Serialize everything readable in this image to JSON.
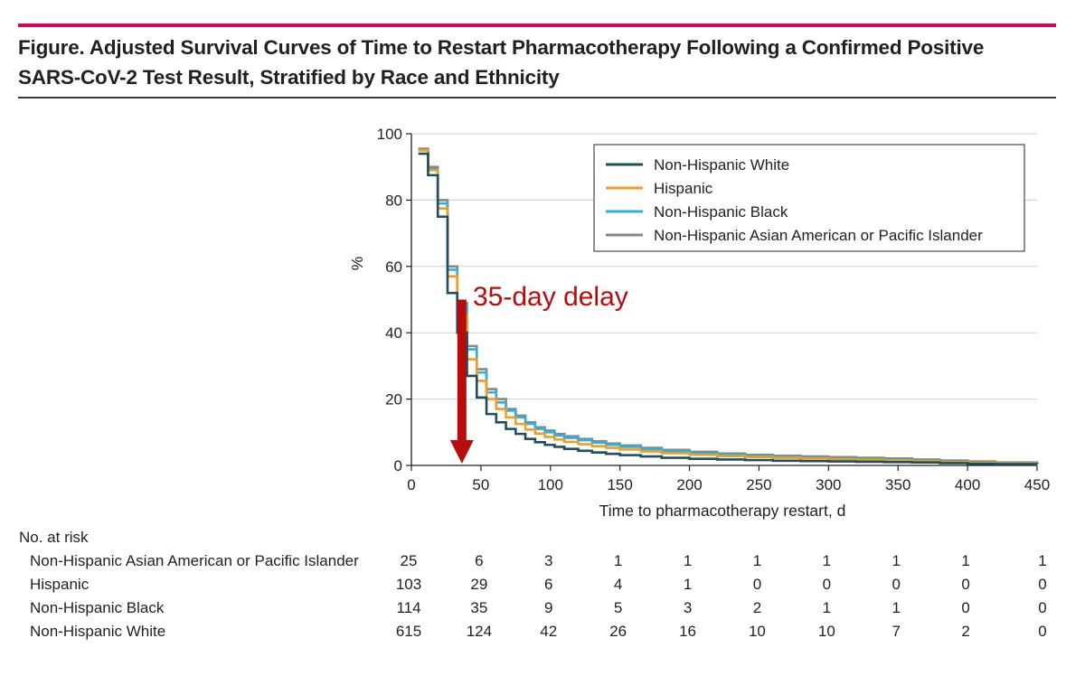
{
  "figure": {
    "title_line1": "Figure. Adjusted Survival Curves of Time to Restart Pharmacotherapy Following a Confirmed Positive",
    "title_line2": "SARS-CoV-2 Test Result, Stratified by Race and Ethnicity"
  },
  "colors": {
    "accent_rule": "#d6045a",
    "white": "#1f4e5f",
    "hispanic": "#f39c1f",
    "black": "#29b2e2",
    "asian": "#8b8680",
    "annotation": "#b80b0b"
  },
  "chart_data": {
    "type": "line",
    "xlabel": "Time to pharmacotherapy restart, d",
    "ylabel": "%",
    "xlim": [
      0,
      450
    ],
    "ylim": [
      0,
      100
    ],
    "x_ticks": [
      0,
      50,
      100,
      150,
      200,
      250,
      300,
      350,
      400,
      450
    ],
    "y_ticks": [
      0,
      20,
      40,
      60,
      80,
      100
    ],
    "legend_position": "top-right",
    "legend": [
      "Non-Hispanic White",
      "Hispanic",
      "Non-Hispanic Black",
      "Non-Hispanic Asian American or Pacific Islander"
    ],
    "annotation": {
      "text": "35-day delay",
      "x": 35,
      "y_from": 50,
      "y_to": 0
    },
    "series": [
      {
        "name": "Non-Hispanic Asian American or Pacific Islander",
        "color_key": "asian",
        "style": "step",
        "x": [
          5,
          12,
          19,
          26,
          33,
          40,
          47,
          54,
          61,
          68,
          75,
          82,
          89,
          96,
          103,
          110,
          120,
          130,
          140,
          150,
          165,
          180,
          200,
          220,
          240,
          260,
          280,
          300,
          320,
          340,
          360,
          380,
          400,
          420,
          450
        ],
        "y": [
          95.5,
          90,
          80,
          60,
          49,
          36,
          29,
          23,
          20,
          17,
          15,
          13,
          11.5,
          10.5,
          9.5,
          8.8,
          8,
          7.3,
          6.6,
          6,
          5.3,
          4.7,
          4.1,
          3.6,
          3.2,
          2.9,
          2.7,
          2.5,
          2.3,
          2.1,
          1.8,
          1.5,
          1.2,
          0.9,
          0.6
        ]
      },
      {
        "name": "Non-Hispanic Black",
        "color_key": "black",
        "style": "step",
        "x": [
          5,
          12,
          19,
          26,
          33,
          40,
          47,
          54,
          61,
          68,
          75,
          82,
          89,
          96,
          103,
          110,
          120,
          130,
          140,
          150,
          165,
          180,
          200,
          220,
          240,
          260,
          280,
          300,
          320,
          340,
          360,
          380,
          400,
          420,
          450
        ],
        "y": [
          95,
          89.3,
          79,
          59,
          48,
          35,
          28,
          22,
          19,
          16.5,
          14.5,
          12.5,
          11,
          10,
          9,
          8.3,
          7.6,
          6.9,
          6.2,
          5.6,
          4.9,
          4.3,
          3.7,
          3.2,
          2.8,
          2.5,
          2.3,
          2.1,
          1.9,
          1.7,
          1.4,
          1.1,
          0.9,
          0.7,
          0.5
        ]
      },
      {
        "name": "Hispanic",
        "color_key": "hispanic",
        "style": "step",
        "x": [
          5,
          12,
          19,
          26,
          33,
          40,
          47,
          54,
          61,
          68,
          75,
          82,
          89,
          96,
          103,
          110,
          120,
          130,
          140,
          150,
          165,
          180,
          200,
          220,
          240,
          260,
          280,
          300,
          320,
          340,
          360,
          380,
          400,
          420,
          450
        ],
        "y": [
          95,
          89,
          77.5,
          57,
          45.5,
          32,
          25.5,
          20,
          17,
          14.5,
          12.5,
          10.8,
          9.6,
          8.6,
          7.8,
          7.1,
          6.4,
          5.8,
          5.3,
          4.8,
          4.2,
          3.7,
          3.2,
          2.8,
          2.5,
          2.3,
          2.1,
          1.9,
          1.7,
          1.5,
          1.3,
          1.0,
          0.8,
          0.6,
          0.4
        ]
      },
      {
        "name": "Non-Hispanic White",
        "color_key": "white",
        "style": "step",
        "x": [
          5,
          12,
          19,
          26,
          33,
          40,
          47,
          54,
          61,
          68,
          75,
          82,
          89,
          96,
          103,
          110,
          120,
          130,
          140,
          150,
          165,
          180,
          200,
          220,
          240,
          260,
          280,
          300,
          320,
          340,
          360,
          380,
          400,
          420,
          450
        ],
        "y": [
          94,
          87.5,
          75,
          52,
          40,
          27,
          20.5,
          15.5,
          13,
          11,
          9.5,
          8,
          7,
          6.2,
          5.6,
          5,
          4.4,
          3.9,
          3.5,
          3.1,
          2.7,
          2.3,
          2,
          1.8,
          1.6,
          1.4,
          1.3,
          1.2,
          1.1,
          1,
          0.9,
          0.7,
          0.5,
          0.4,
          0.3
        ]
      }
    ]
  },
  "risk_table": {
    "header": "No. at risk",
    "rows": [
      {
        "label": "Non-Hispanic Asian American or Pacific Islander",
        "values": [
          "25",
          "6",
          "3",
          "1",
          "1",
          "1",
          "1",
          "1",
          "1",
          "1"
        ]
      },
      {
        "label": "Hispanic",
        "values": [
          "103",
          "29",
          "6",
          "4",
          "1",
          "0",
          "0",
          "0",
          "0",
          "0"
        ]
      },
      {
        "label": "Non-Hispanic Black",
        "values": [
          "114",
          "35",
          "9",
          "5",
          "3",
          "2",
          "1",
          "1",
          "0",
          "0"
        ]
      },
      {
        "label": "Non-Hispanic White",
        "values": [
          "615",
          "124",
          "42",
          "26",
          "16",
          "10",
          "10",
          "7",
          "2",
          "0"
        ]
      }
    ]
  }
}
